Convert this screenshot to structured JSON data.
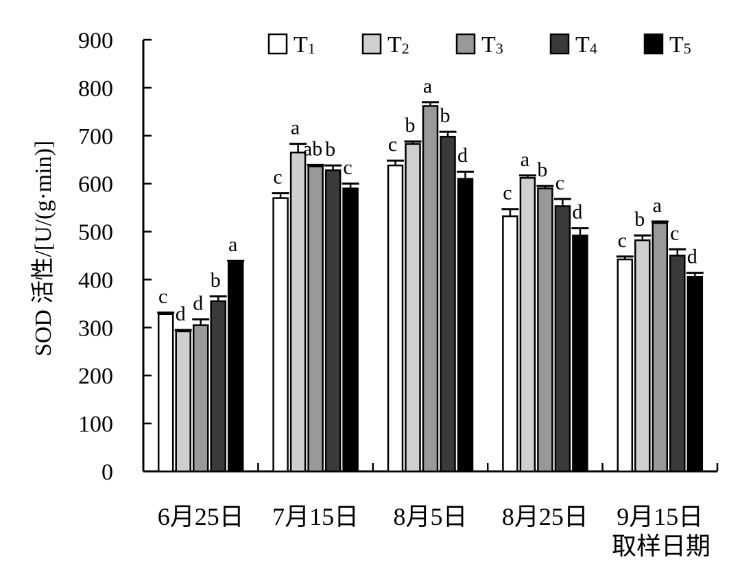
{
  "chart_data": {
    "type": "bar",
    "xlabel": "取样日期",
    "ylabel": "SOD 活性/[U/(g·min)]",
    "ylim": [
      0,
      900
    ],
    "yticks": [
      0,
      100,
      200,
      300,
      400,
      500,
      600,
      700,
      800,
      900
    ],
    "categories": [
      "6月25日",
      "7月15日",
      "8月5日",
      "8月25日",
      "9月15日"
    ],
    "legend_position": "top",
    "grid": false,
    "series": [
      {
        "name": "T",
        "sub": "1",
        "color": "#ffffff",
        "values": [
          328,
          570,
          638,
          532,
          442
        ],
        "errors": [
          3,
          10,
          10,
          15,
          6
        ],
        "letters": [
          "c",
          "c",
          "c",
          "c",
          "c"
        ]
      },
      {
        "name": "T",
        "sub": "2",
        "color": "#cfcfcf",
        "values": [
          292,
          665,
          683,
          612,
          482
        ],
        "errors": [
          3,
          18,
          5,
          5,
          10
        ],
        "letters": [
          "d",
          "a",
          "b",
          "a",
          "b"
        ]
      },
      {
        "name": "T",
        "sub": "3",
        "color": "#999999",
        "values": [
          305,
          636,
          762,
          590,
          518
        ],
        "errors": [
          12,
          3,
          8,
          5,
          3
        ],
        "letters": [
          "d",
          "ab",
          "a",
          "b",
          "a"
        ]
      },
      {
        "name": "T",
        "sub": "4",
        "color": "#3a3a3a",
        "values": [
          355,
          628,
          698,
          553,
          450
        ],
        "errors": [
          10,
          10,
          10,
          15,
          13
        ],
        "letters": [
          "b",
          "b",
          "b",
          "c",
          "c"
        ]
      },
      {
        "name": "T",
        "sub": "5",
        "color": "#000000",
        "values": [
          436,
          590,
          610,
          492,
          406
        ],
        "errors": [
          3,
          10,
          15,
          15,
          8
        ],
        "letters": [
          "a",
          "c",
          "d",
          "d",
          "d"
        ]
      }
    ]
  }
}
